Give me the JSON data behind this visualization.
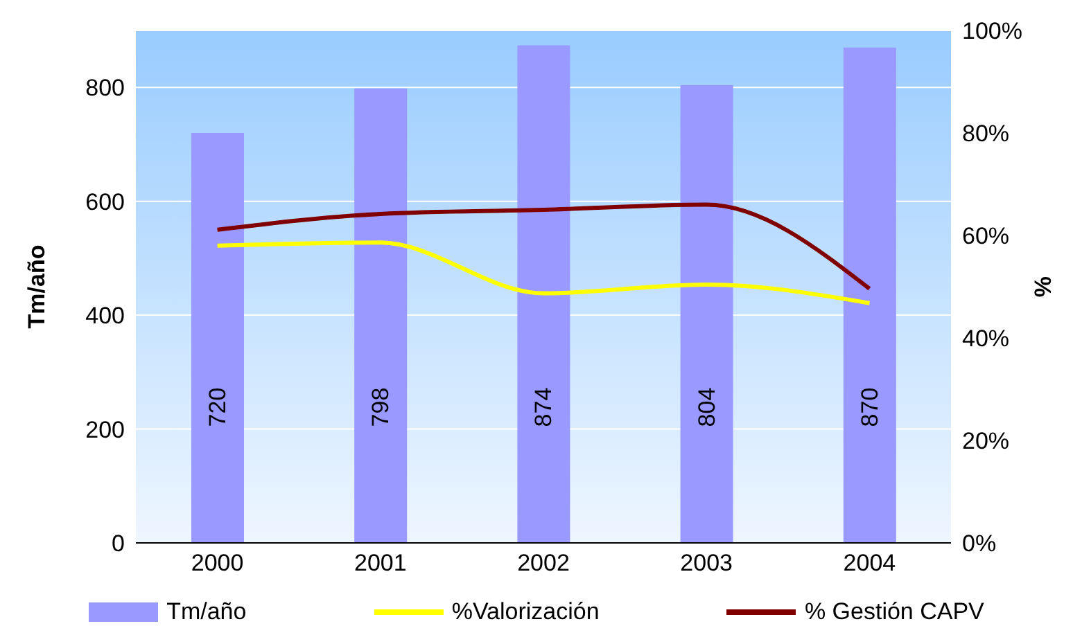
{
  "chart_data": {
    "type": "bar",
    "categories": [
      "2000",
      "2001",
      "2002",
      "2003",
      "2004"
    ],
    "ylabel": "Tm/año",
    "y2label": "%",
    "ylim": [
      0,
      900
    ],
    "yticks": [
      0,
      200,
      400,
      600,
      800
    ],
    "y2lim": [
      0,
      100
    ],
    "y2ticks": [
      {
        "value": 0,
        "label": "0%"
      },
      {
        "value": 20,
        "label": "20%"
      },
      {
        "value": 40,
        "label": "40%"
      },
      {
        "value": 60,
        "label": "60%"
      },
      {
        "value": 80,
        "label": "80%"
      },
      {
        "value": 100,
        "label": "100%"
      }
    ],
    "grid": "y",
    "legend": "bottom",
    "marker": "none",
    "series": [
      {
        "name": "Tm/año",
        "color": "#9999ff",
        "values": [
          720,
          798,
          874,
          804,
          870
        ],
        "value_labels": [
          "720",
          "798",
          "874",
          "804",
          "870"
        ]
      },
      {
        "name": "%Valorización",
        "type": "line",
        "axis": "y2",
        "color": "#ffff00",
        "values": [
          58,
          58.6,
          48.7,
          50.4,
          46.8
        ]
      },
      {
        "name": "% Gestión CAPV",
        "type": "line",
        "axis": "y2",
        "color": "#800000",
        "values": [
          61.1,
          64.2,
          65,
          66,
          49.6
        ]
      }
    ]
  }
}
